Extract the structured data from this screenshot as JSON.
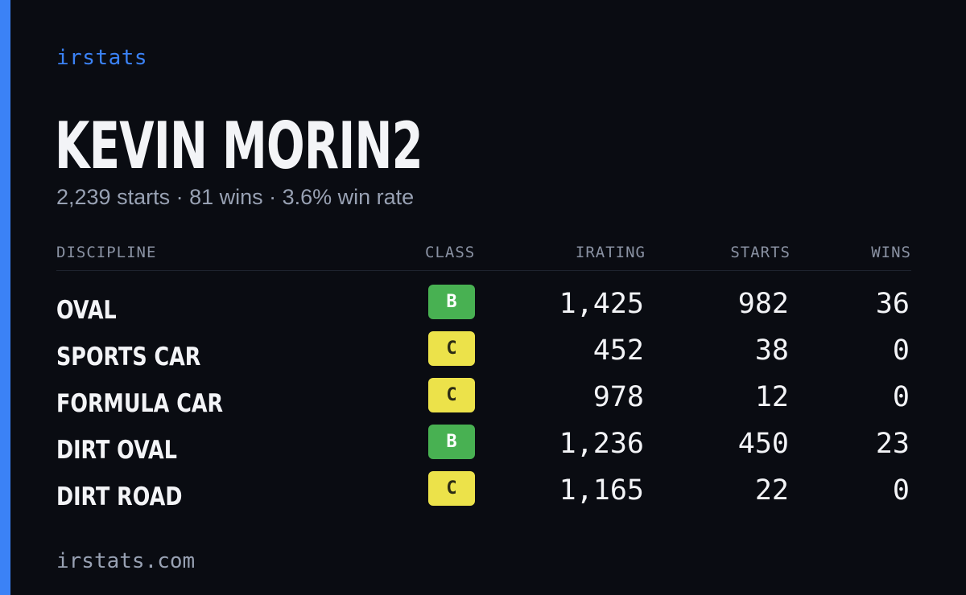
{
  "brand": "irstats",
  "player": {
    "name": "KEVIN MORIN2",
    "summary": "2,239 starts · 81 wins · 3.6% win rate"
  },
  "table": {
    "headers": {
      "discipline": "DISCIPLINE",
      "class": "CLASS",
      "irating": "IRATING",
      "starts": "STARTS",
      "wins": "WINS"
    },
    "rows": [
      {
        "discipline": "OVAL",
        "class": "B",
        "irating": "1,425",
        "starts": "982",
        "wins": "36"
      },
      {
        "discipline": "SPORTS CAR",
        "class": "C",
        "irating": "452",
        "starts": "38",
        "wins": "0"
      },
      {
        "discipline": "FORMULA CAR",
        "class": "C",
        "irating": "978",
        "starts": "12",
        "wins": "0"
      },
      {
        "discipline": "DIRT OVAL",
        "class": "B",
        "irating": "1,236",
        "starts": "450",
        "wins": "23"
      },
      {
        "discipline": "DIRT ROAD",
        "class": "C",
        "irating": "1,165",
        "starts": "22",
        "wins": "0"
      }
    ]
  },
  "footer": "irstats.com",
  "colors": {
    "accent": "#3b82f6",
    "background": "#0a0c12",
    "class_b": "#48b152",
    "class_c": "#ece24a"
  }
}
